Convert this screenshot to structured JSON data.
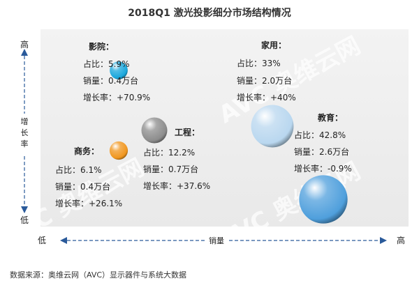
{
  "title": "2018Q1 激光投影细分市场结构情况",
  "source": "数据来源：奥维云网（AVC）显示器件与系统大数据",
  "watermark": "AVC 奥维云网",
  "axes": {
    "y_title": "增长率",
    "y_high": "高",
    "y_low": "低",
    "x_title": "销量",
    "x_low": "低",
    "x_high": "高"
  },
  "chart_data": {
    "type": "scatter",
    "title": "2018Q1 激光投影细分市场结构情况",
    "xlabel": "销量",
    "ylabel": "增长率",
    "field_labels": {
      "share": "占比",
      "volume": "销量",
      "growth": "增长率"
    },
    "points": [
      {
        "name": "影院",
        "share": "5.9%",
        "volume": "0.4万台",
        "growth": "+70.9%",
        "volume_value": 0.4,
        "growth_value": 70.9,
        "share_value": 5.9,
        "color": "#1aa7dc"
      },
      {
        "name": "家用",
        "share": "33%",
        "volume": "2.0万台",
        "growth": "+40%",
        "volume_value": 2.0,
        "growth_value": 40,
        "share_value": 33,
        "color": "#b9d7ef"
      },
      {
        "name": "工程",
        "share": "12.2%",
        "volume": "0.7万台",
        "growth": "+37.6%",
        "volume_value": 0.7,
        "growth_value": 37.6,
        "share_value": 12.2,
        "color": "#8c8c8c"
      },
      {
        "name": "商务",
        "share": "6.1%",
        "volume": "0.4万台",
        "growth": "+26.1%",
        "volume_value": 0.4,
        "growth_value": 26.1,
        "share_value": 6.1,
        "color": "#f0961e"
      },
      {
        "name": "教育",
        "share": "42.8%",
        "volume": "2.6万台",
        "growth": "-0.9%",
        "volume_value": 2.6,
        "growth_value": -0.9,
        "share_value": 42.8,
        "color": "#4f9fdc"
      }
    ]
  }
}
